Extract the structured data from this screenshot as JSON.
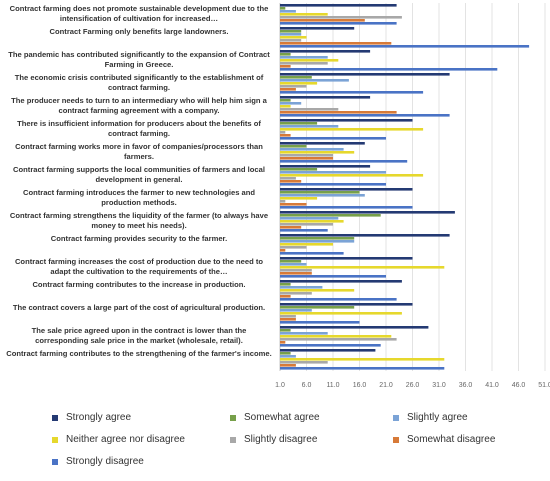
{
  "chart_data": {
    "type": "bar",
    "orientation": "horizontal",
    "categories": [
      "Contract farming does not promote sustainable development due to the intensification of cultivation for increased…",
      "Contract Farming only benefits large landowners.",
      "The pandemic has contributed significantly to the expansion of Contract Farming in Greece.",
      "The economic crisis contributed significantly to the establishment of contract farming.",
      "The producer needs to turn to an intermediary who will help him sign a contract farming agreement with a company.",
      "There is insufficient information for producers about the benefits of contract farming.",
      "Contract farming works more in favor of companies/processors than farmers.",
      "Contract farming supports the local communities of farmers and local development in general.",
      "Contract farming introduces the farmer to new technologies and production methods.",
      "Contract farming strengthens the liquidity of the farmer (to always have money to meet his needs).",
      "Contract farming provides security to the farmer.",
      "Contract farming increases the cost of production due to the need to adapt the cultivation to the requirements of the…",
      "Contract farming contributes to the increase in production.",
      "The contract covers a large part of the cost of agricultural production.",
      "The sale price agreed upon in the contract is lower than the corresponding sale price in the market (wholesale, retail).",
      "Contract farming contributes to the strengthening of the farmer's income."
    ],
    "series": [
      {
        "name": "Strongly agree",
        "color": "#243a73",
        "values": [
          23,
          15,
          18,
          33,
          18,
          26,
          17,
          18,
          26,
          34,
          33,
          26,
          24,
          26,
          29,
          19
        ]
      },
      {
        "name": "Somewhat agree",
        "color": "#77a04a",
        "values": [
          2,
          5,
          3,
          7,
          3,
          8,
          6,
          8,
          16,
          20,
          15,
          5,
          3,
          15,
          3,
          3
        ]
      },
      {
        "name": "Slightly agree",
        "color": "#7ba3d6",
        "values": [
          4,
          5,
          10,
          14,
          5,
          12,
          13,
          21,
          17,
          12,
          15,
          6,
          9,
          7,
          10,
          4
        ]
      },
      {
        "name": "Neither agree nor disagree",
        "color": "#e6d82d",
        "values": [
          10,
          6,
          12,
          8,
          3,
          28,
          15,
          28,
          8,
          13,
          11,
          32,
          15,
          24,
          22,
          32
        ]
      },
      {
        "name": "Slightly disagree",
        "color": "#a8a8a8",
        "values": [
          24,
          5,
          10,
          6,
          12,
          2,
          11,
          4,
          2,
          11,
          6,
          7,
          7,
          4,
          23,
          10
        ]
      },
      {
        "name": "Somewhat disagree",
        "color": "#d77a38",
        "values": [
          17,
          22,
          3,
          4,
          23,
          3,
          11,
          5,
          6,
          5,
          2,
          7,
          3,
          4,
          2,
          4
        ]
      },
      {
        "name": "Strongly disagree",
        "color": "#4a73c5",
        "values": [
          23,
          48,
          42,
          28,
          33,
          21,
          25,
          21,
          26,
          10,
          13,
          21,
          23,
          16,
          20,
          32
        ]
      }
    ],
    "xaxis": {
      "ticks": [
        "1.0",
        "6.0",
        "11.0",
        "16.0",
        "21.0",
        "26.0",
        "31.0",
        "36.0",
        "41.0",
        "46.0",
        "51.0"
      ],
      "range": [
        1,
        51
      ]
    },
    "grid": "vertical",
    "legend_position": "bottom"
  }
}
